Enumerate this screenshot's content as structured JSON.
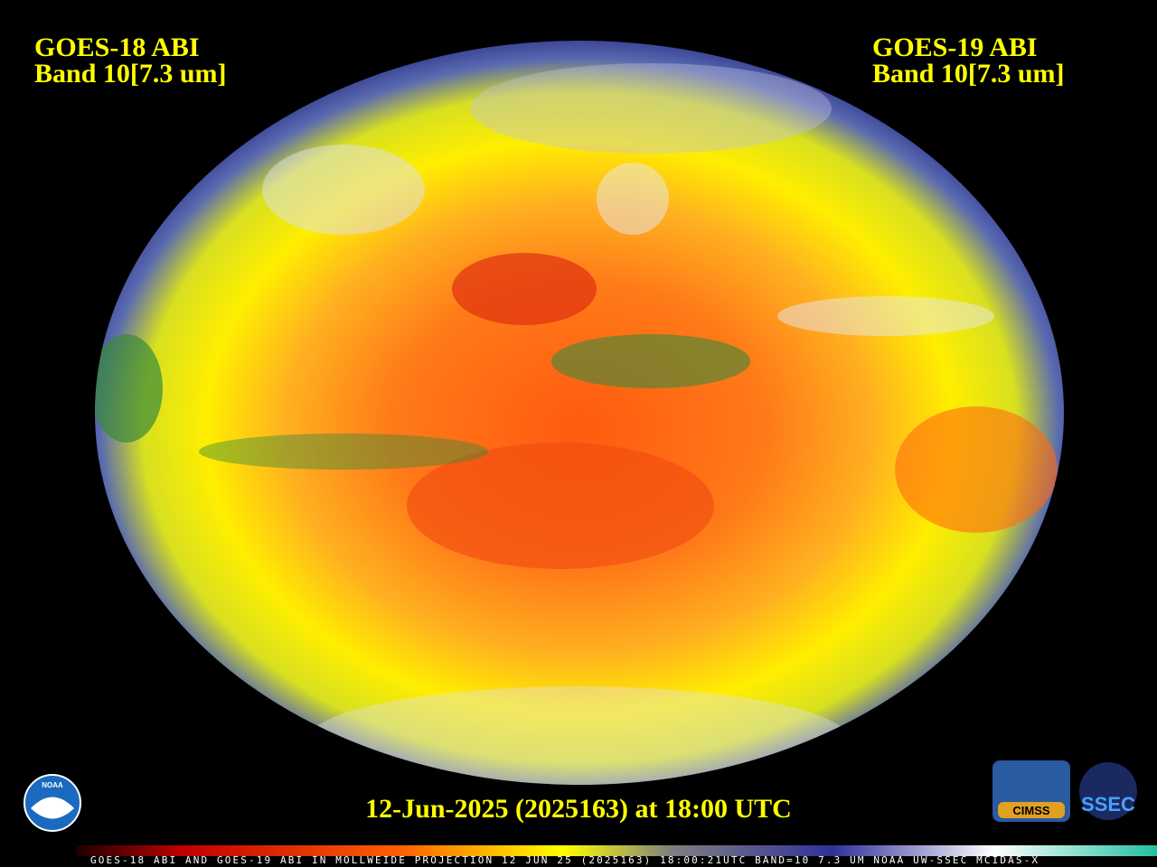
{
  "header": {
    "left": {
      "line1": "GOES-18 ABI",
      "line2": "Band 10[7.3 um]"
    },
    "right": {
      "line1": "GOES-19 ABI",
      "line2": "Band 10[7.3 um]"
    }
  },
  "timestamp": "12-Jun-2025 (2025163) at 18:00 UTC",
  "footer": "GOES-18 ABI AND GOES-19 ABI IN MOLLWEIDE PROJECTION 12 JUN 25 (2025163) 18:00:21UTC BAND=10 7.3 UM NOAA UW-SSEC MCIDAS-X",
  "logos": {
    "noaa": "NOAA",
    "cimss": "CIMSS",
    "ssec": "SSEC"
  }
}
